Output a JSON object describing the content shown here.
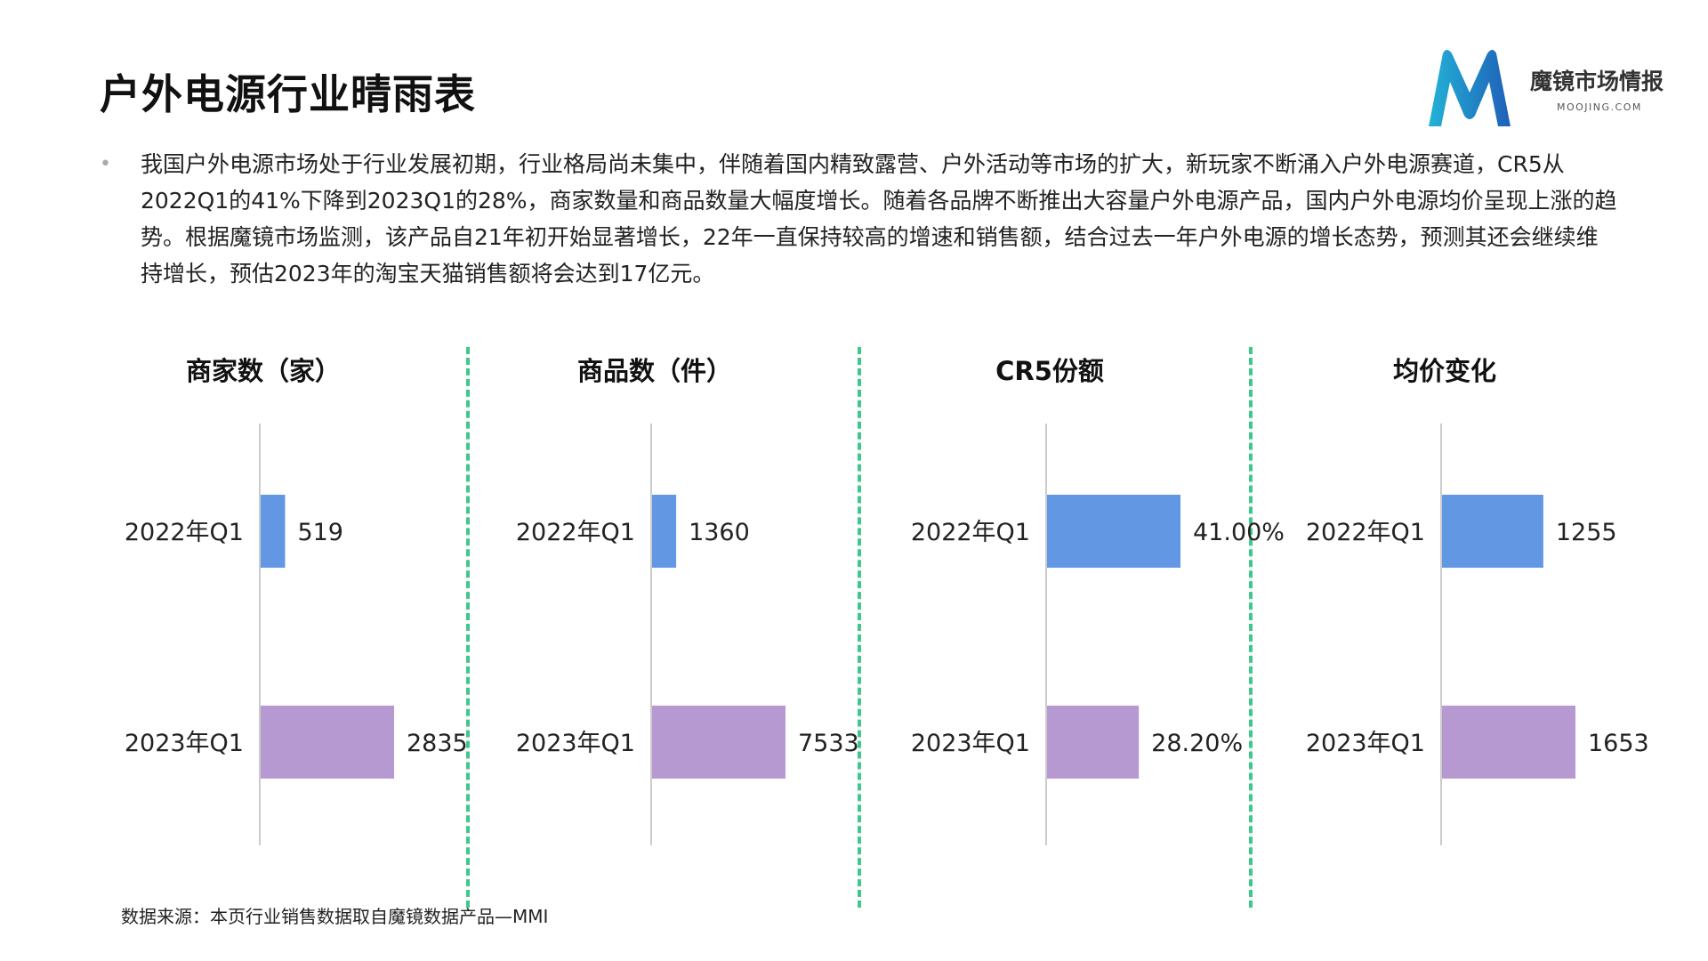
{
  "header": {
    "title": "户外电源行业晴雨表"
  },
  "logo": {
    "name": "魔镜市场情报",
    "domain": "MOOJING.COM",
    "colors": {
      "left": "#22b3d6",
      "right": "#1f5fb8"
    }
  },
  "description": {
    "text": "我国户外电源市场处于行业发展初期，行业格局尚未集中，伴随着国内精致露营、户外活动等市场的扩大，新玩家不断涌入户外电源赛道，CR5从2022Q1的41%下降到2023Q1的28%，商家数量和商品数量大幅度增长。随着各品牌不断推出大容量户外电源产品，国内户外电源均价呈现上涨的趋势。根据魔镜市场监测，该产品自21年初开始显著增长，22年一直保持较高的增速和销售额，结合过去一年户外电源的增长态势，预测其还会继续维持增长，预估2023年的淘宝天猫销售额将会达到17亿元。"
  },
  "footer": {
    "source": "数据来源：本页行业销售数据取自魔镜数据产品—MMI"
  },
  "colors": {
    "bar_2022": "#6297e4",
    "bar_2023": "#b799d2",
    "divider": "#3cc98a",
    "axis": "#cccccc"
  },
  "chart_data": [
    {
      "type": "bar",
      "orientation": "horizontal",
      "title": "商家数（家）",
      "categories": [
        "2022年Q1",
        "2023年Q1"
      ],
      "values": [
        519,
        2835
      ],
      "value_labels": [
        "519",
        "2835"
      ],
      "xlim": [
        0,
        3000
      ]
    },
    {
      "type": "bar",
      "orientation": "horizontal",
      "title": "商品数（件）",
      "categories": [
        "2022年Q1",
        "2023年Q1"
      ],
      "values": [
        1360,
        7533
      ],
      "value_labels": [
        "1360",
        "7533"
      ],
      "xlim": [
        0,
        8000
      ]
    },
    {
      "type": "bar",
      "orientation": "horizontal",
      "title": "CR5份额",
      "categories": [
        "2022年Q1",
        "2023年Q1"
      ],
      "values": [
        41.0,
        28.2
      ],
      "value_labels": [
        "41.00%",
        "28.20%"
      ],
      "xlim": [
        0,
        100
      ]
    },
    {
      "type": "bar",
      "orientation": "horizontal",
      "title": "均价变化",
      "categories": [
        "2022年Q1",
        "2023年Q1"
      ],
      "values": [
        1255,
        1653
      ],
      "value_labels": [
        "1255",
        "1653"
      ],
      "xlim": [
        0,
        2200
      ]
    }
  ]
}
